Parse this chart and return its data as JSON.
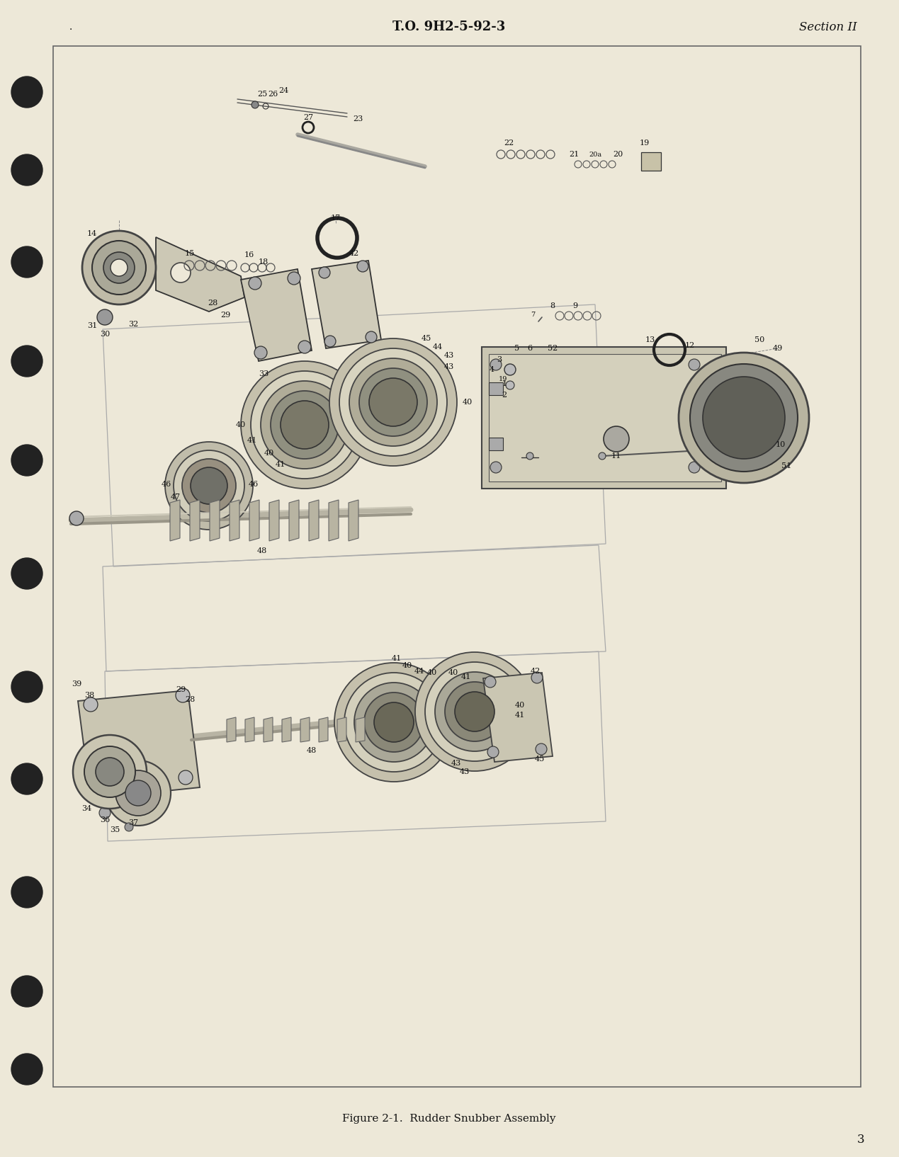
{
  "page_bg": "#ede8d8",
  "diagram_bg": "#ede8d8",
  "border_color": "#666666",
  "text_color": "#111111",
  "line_color": "#333333",
  "header": "T.O. 9H2-5-92-3",
  "section": "Section II",
  "caption": "Figure 2-1.  Rudder Snubber Assembly",
  "page_num": "3",
  "part_color": "#c8c2a8",
  "part_edge": "#333333",
  "ring_color": "#a09880",
  "dark_ring": "#555550",
  "medium_ring": "#888878",
  "hole_color": "#222222"
}
